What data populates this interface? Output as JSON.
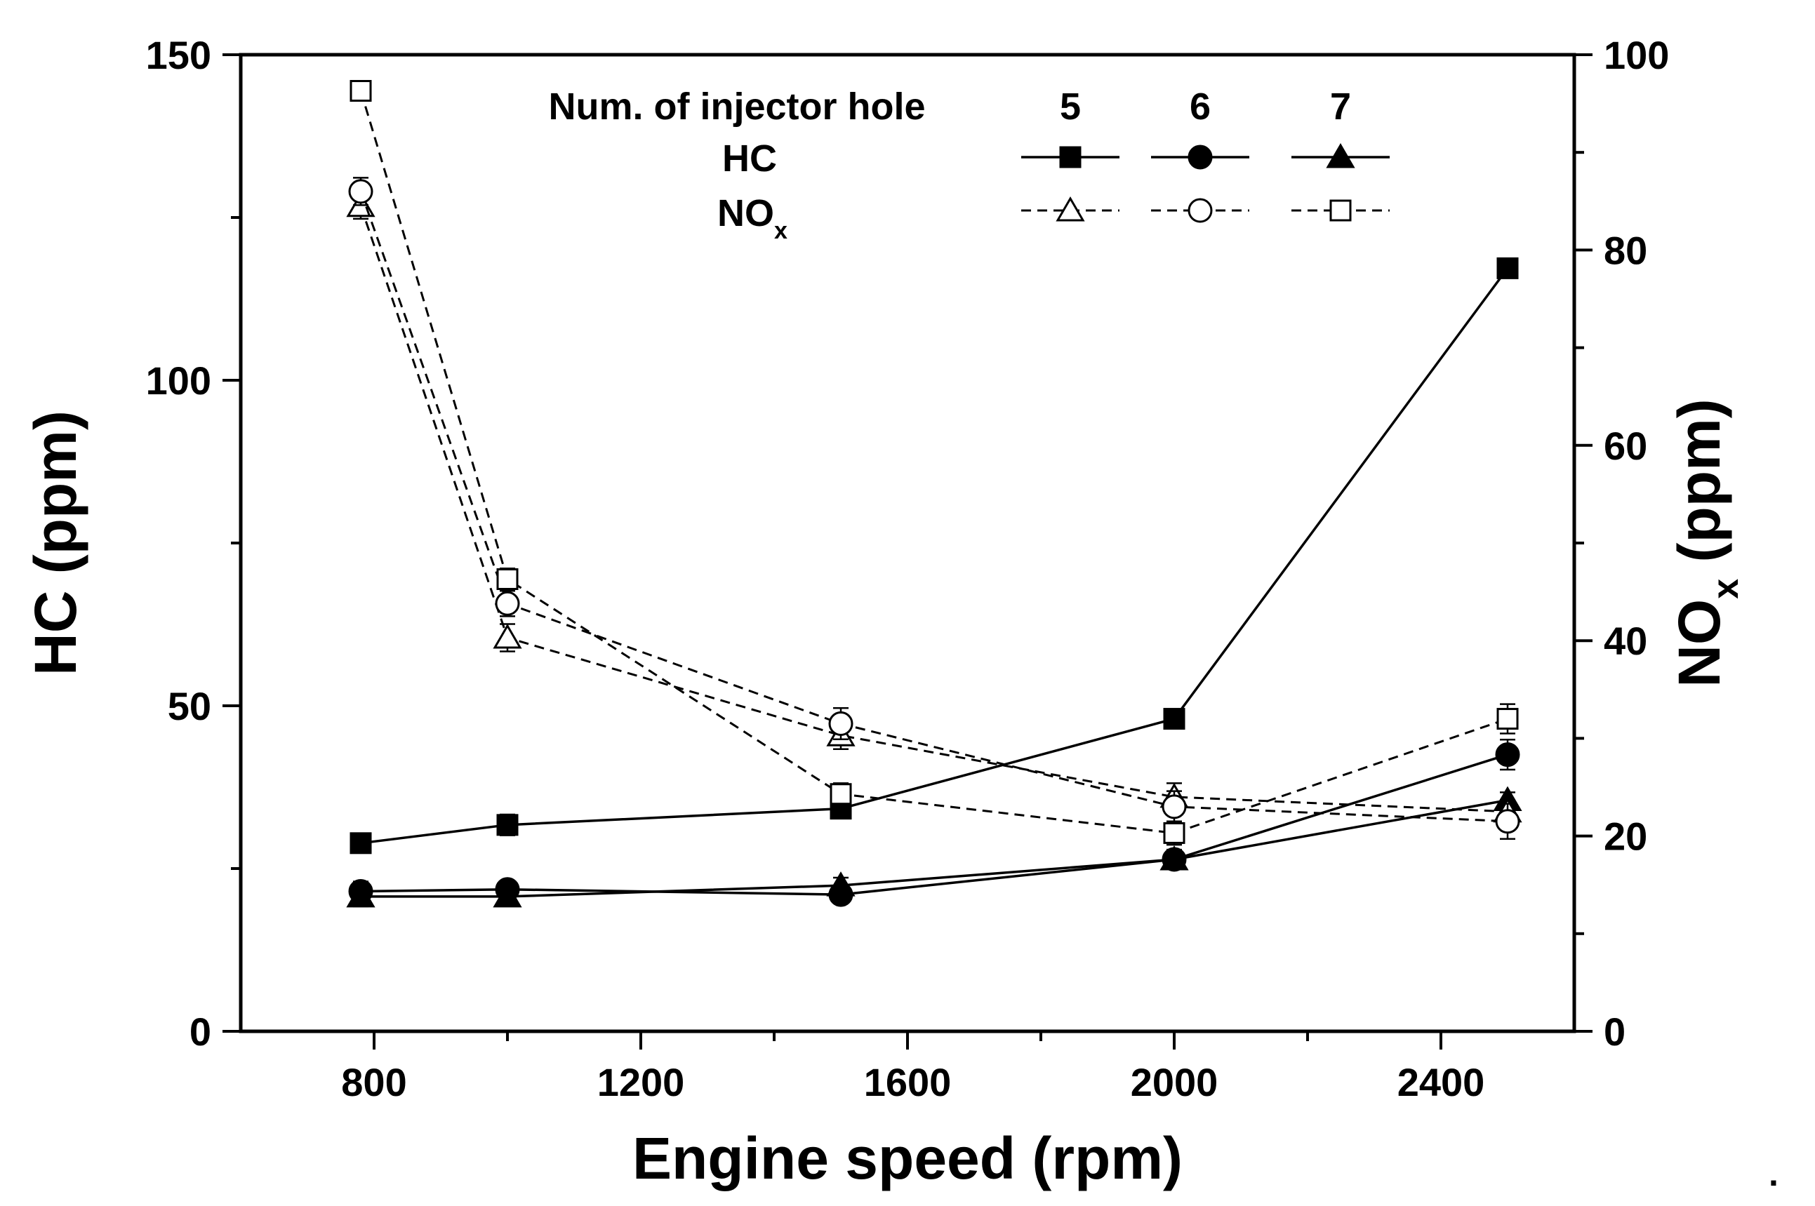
{
  "chart_data": {
    "type": "line",
    "x_title": "Engine speed (rpm)",
    "y_title_left": "HC (ppm)",
    "y_title_right": {
      "main": "NO",
      "sub": "x",
      "rest": " (ppm)"
    },
    "x_range": [
      600,
      2600
    ],
    "x_ticks": [
      800,
      1200,
      1600,
      2000,
      2400
    ],
    "y_left_range": [
      0,
      150
    ],
    "y_left_ticks": [
      0,
      50,
      100,
      150
    ],
    "y_right_range": [
      0,
      100
    ],
    "y_right_ticks": [
      0,
      20,
      40,
      60,
      80,
      100
    ],
    "x": [
      780,
      1000,
      1500,
      2000,
      2500
    ],
    "legend": {
      "title": "Num. of injector hole",
      "columns": [
        "5",
        "6",
        "7"
      ],
      "row_hc": "HC",
      "row_nox": {
        "main": "NO",
        "sub": "x"
      }
    },
    "series": [
      {
        "name": "HC 5 holes",
        "axis": "left",
        "marker": "square",
        "filled": true,
        "dash": false,
        "values": [
          28.9,
          31.7,
          34.2,
          48.0,
          117.2
        ],
        "errors": [
          1.2,
          1.6,
          1.2,
          1.4,
          1.5
        ]
      },
      {
        "name": "HC 6 holes",
        "axis": "left",
        "marker": "circle",
        "filled": true,
        "dash": false,
        "values": [
          21.5,
          21.8,
          21.0,
          26.4,
          42.5
        ],
        "errors": [
          1.5,
          1.3,
          1.2,
          1.3,
          2.3
        ]
      },
      {
        "name": "HC 7 holes",
        "axis": "left",
        "marker": "triangle",
        "filled": true,
        "dash": false,
        "values": [
          20.7,
          20.7,
          22.4,
          26.4,
          35.5
        ],
        "errors": [
          1.5,
          1.3,
          1.2,
          1.5,
          1.2
        ]
      },
      {
        "name": "NOx 5 holes",
        "axis": "right",
        "marker": "triangle",
        "filled": false,
        "dash": true,
        "values": [
          84.5,
          40.3,
          30.3,
          24.0,
          22.5
        ],
        "errors": [
          1.3,
          1.4,
          1.4,
          1.4,
          1.2
        ]
      },
      {
        "name": "NOx 6 holes",
        "axis": "right",
        "marker": "circle",
        "filled": false,
        "dash": true,
        "values": [
          86.0,
          43.8,
          31.5,
          23.0,
          21.5
        ],
        "errors": [
          1.4,
          1.3,
          1.6,
          1.6,
          1.8
        ]
      },
      {
        "name": "NOx 7 holes",
        "axis": "right",
        "marker": "square",
        "filled": false,
        "dash": true,
        "values": [
          96.3,
          46.3,
          24.3,
          20.3,
          32.0
        ],
        "errors": [
          1.0,
          1.1,
          1.1,
          1.2,
          1.5
        ]
      }
    ]
  }
}
